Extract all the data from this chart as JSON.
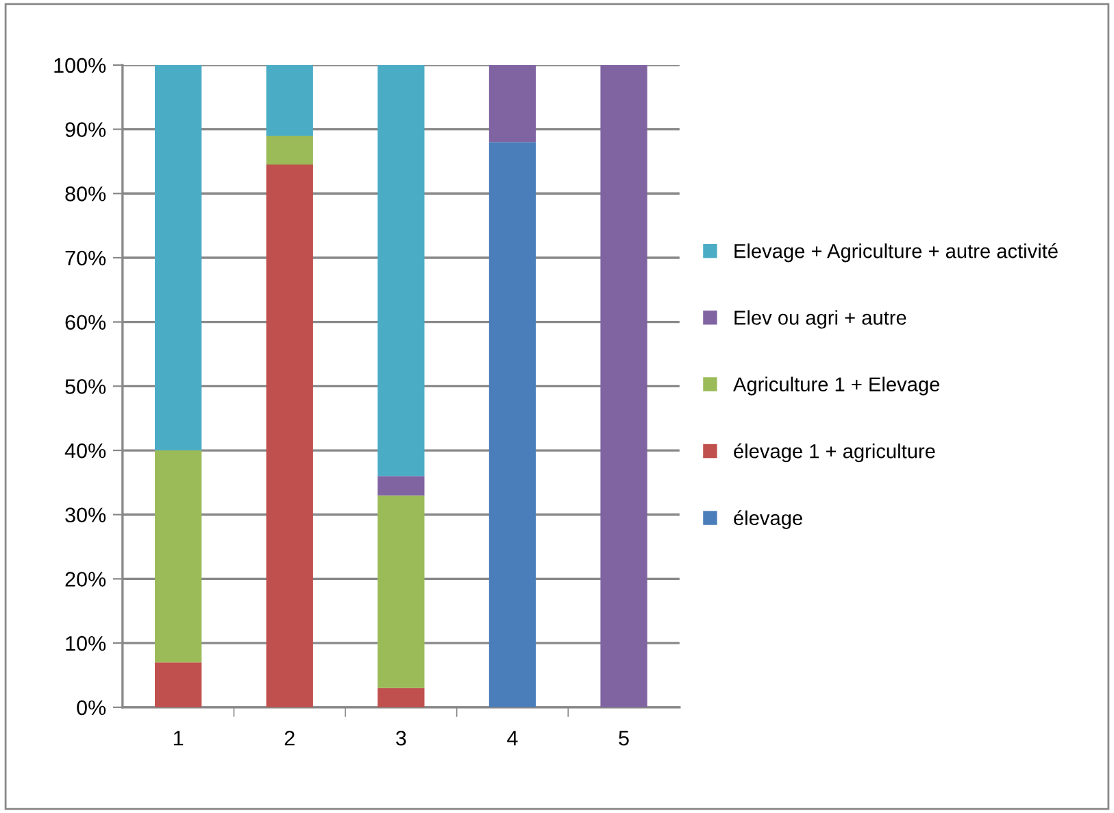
{
  "chart_data": {
    "type": "bar",
    "stacked": true,
    "categories": [
      "1",
      "2",
      "3",
      "4",
      "5"
    ],
    "series": [
      {
        "name": "élevage",
        "color": "#4a7ebb",
        "values": [
          null,
          null,
          null,
          88,
          null
        ]
      },
      {
        "name": "élevage 1 + agriculture",
        "color": "#c0504d",
        "values": [
          7,
          84.5,
          3,
          null,
          null
        ]
      },
      {
        "name": "Agriculture 1 + Elevage",
        "color": "#9bbb59",
        "values": [
          33,
          4.5,
          30,
          null,
          null
        ]
      },
      {
        "name": "Elev ou agri + autre",
        "color": "#8064a2",
        "values": [
          null,
          null,
          3,
          12,
          100
        ]
      },
      {
        "name": "Elevage + Agriculture + autre activité",
        "color": "#4bacc6",
        "values": [
          60,
          11,
          64,
          null,
          null
        ]
      }
    ],
    "ylim": [
      0,
      100
    ],
    "yticks": [
      {
        "value": 0,
        "label": "0%"
      },
      {
        "value": 10,
        "label": "10%"
      },
      {
        "value": 20,
        "label": "20%"
      },
      {
        "value": 30,
        "label": "30%"
      },
      {
        "value": 40,
        "label": "40%"
      },
      {
        "value": 50,
        "label": "50%"
      },
      {
        "value": 60,
        "label": "60%"
      },
      {
        "value": 70,
        "label": "70%"
      },
      {
        "value": 80,
        "label": "80%"
      },
      {
        "value": 90,
        "label": "90%"
      },
      {
        "value": 100,
        "label": "100%"
      }
    ],
    "grid": "y",
    "legend": "right"
  }
}
